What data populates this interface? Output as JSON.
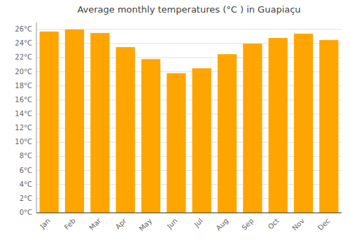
{
  "chart_data": {
    "type": "bar",
    "title": "Average monthly temperatures (°C ) in Guapiaçu",
    "categories": [
      "Jan",
      "Feb",
      "Mar",
      "Apr",
      "May",
      "Jun",
      "Jul",
      "Aug",
      "Sep",
      "Oct",
      "Nov",
      "Dec"
    ],
    "values": [
      25.7,
      26.0,
      25.5,
      23.5,
      21.8,
      19.8,
      20.5,
      22.5,
      24.0,
      24.8,
      25.4,
      24.5
    ],
    "color": "#FFA500",
    "ylim": [
      0,
      27
    ],
    "yticks": [
      {
        "value": 0,
        "label": "0°C"
      },
      {
        "value": 2,
        "label": "2°C"
      },
      {
        "value": 4,
        "label": "4°C"
      },
      {
        "value": 6,
        "label": "6°C"
      },
      {
        "value": 8,
        "label": "8°C"
      },
      {
        "value": 10,
        "label": "10°C"
      },
      {
        "value": 12,
        "label": "12°C"
      },
      {
        "value": 14,
        "label": "14°C"
      },
      {
        "value": 16,
        "label": "16°C"
      },
      {
        "value": 18,
        "label": "18°C"
      },
      {
        "value": 20,
        "label": "20°C"
      },
      {
        "value": 22,
        "label": "22°C"
      },
      {
        "value": 24,
        "label": "24°C"
      },
      {
        "value": 26,
        "label": "26°C"
      }
    ],
    "grid": true
  }
}
